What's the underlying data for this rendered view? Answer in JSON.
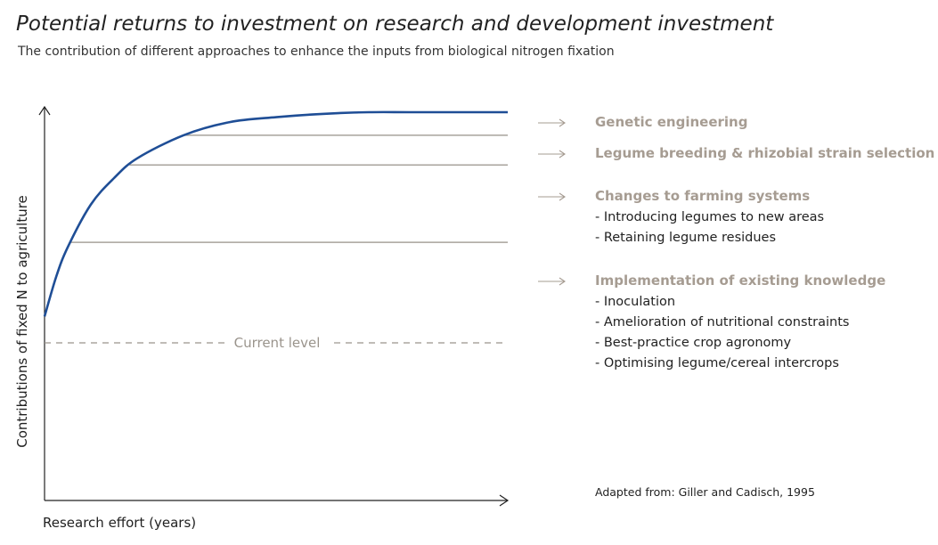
{
  "title": "Potential returns to investment on research and development investment",
  "subtitle": "The contribution of different approaches to enhance the inputs from biological nitrogen fixation",
  "colors": {
    "curve": "#1f4e96",
    "level_lines": "#a8a39c",
    "axis": "#222222",
    "category_heading": "#a69c92",
    "current_level": "#9a948c"
  },
  "chart_data": {
    "type": "line",
    "title": "Potential returns to investment on research and development investment",
    "xlabel": "Research effort (years)",
    "ylabel": "Contributions of fixed N to agriculture",
    "x_range": [
      0,
      10
    ],
    "y_range": [
      0,
      10
    ],
    "grid": false,
    "curve": {
      "description": "saturating return curve",
      "x": [
        0,
        0.25,
        0.5,
        1,
        1.5,
        2,
        3,
        4,
        5,
        6,
        7,
        8,
        10
      ],
      "y": [
        3.8,
        5.0,
        5.9,
        7.2,
        8.0,
        8.6,
        9.3,
        9.7,
        9.85,
        9.95,
        10.0,
        10.0,
        10.0
      ]
    },
    "current_level": {
      "label": "Current level",
      "y": 3.0
    },
    "levels": [
      {
        "label": "Implementation of existing knowledge",
        "y": 6.05
      },
      {
        "label": "Changes to farming systems",
        "y": 8.4
      },
      {
        "label": "Legume breeding & rhizobial strain selection",
        "y": 9.3
      }
    ]
  },
  "categories": [
    {
      "heading": "Genetic engineering",
      "items": []
    },
    {
      "heading": "Legume breeding & rhizobial strain selection",
      "items": []
    },
    {
      "heading": "Changes to farming systems",
      "items": [
        "- Introducing legumes to new areas",
        "- Retaining legume residues"
      ]
    },
    {
      "heading": "Implementation of existing knowledge",
      "items": [
        "- Inoculation",
        "- Amelioration of nutritional constraints",
        "- Best-practice crop agronomy",
        "- Optimising legume/cereal intercrops"
      ]
    }
  ],
  "source": "Adapted from: Giller and Cadisch, 1995"
}
